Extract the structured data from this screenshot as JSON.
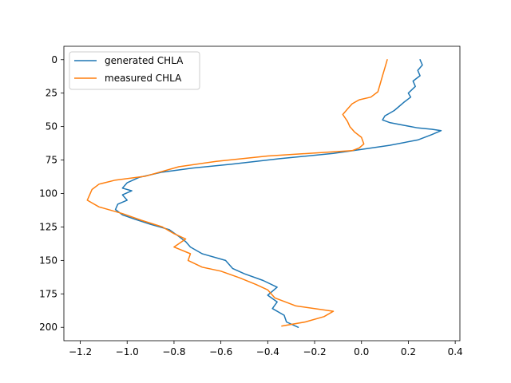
{
  "chart_data": {
    "type": "line",
    "title": "",
    "xlabel": "",
    "ylabel": "",
    "xlim": [
      -1.27,
      0.42
    ],
    "ylim": [
      210,
      -10
    ],
    "y_inverted": true,
    "grid": false,
    "legend_position": "upper-left",
    "x_ticks": [
      -1.2,
      -1.0,
      -0.8,
      -0.6,
      -0.4,
      -0.2,
      0.0,
      0.2,
      0.4
    ],
    "x_tick_labels": [
      "−1.2",
      "−1.0",
      "−0.8",
      "−0.6",
      "−0.4",
      "−0.2",
      "0.0",
      "0.2",
      "0.4"
    ],
    "y_ticks": [
      0,
      25,
      50,
      75,
      100,
      125,
      150,
      175,
      200
    ],
    "y_tick_labels": [
      "0",
      "25",
      "50",
      "75",
      "100",
      "125",
      "150",
      "175",
      "200"
    ],
    "series": [
      {
        "name": "generated CHLA",
        "color": "#1f77b4",
        "points": [
          [
            0.25,
            0
          ],
          [
            0.26,
            4
          ],
          [
            0.24,
            8
          ],
          [
            0.25,
            12
          ],
          [
            0.22,
            16
          ],
          [
            0.23,
            20
          ],
          [
            0.2,
            25
          ],
          [
            0.21,
            28
          ],
          [
            0.18,
            32
          ],
          [
            0.16,
            35
          ],
          [
            0.14,
            38
          ],
          [
            0.12,
            40
          ],
          [
            0.1,
            42
          ],
          [
            0.09,
            45
          ],
          [
            0.12,
            47
          ],
          [
            0.18,
            49
          ],
          [
            0.24,
            51
          ],
          [
            0.3,
            52
          ],
          [
            0.34,
            53
          ],
          [
            0.3,
            56
          ],
          [
            0.24,
            60
          ],
          [
            0.12,
            64
          ],
          [
            0.0,
            67
          ],
          [
            -0.12,
            70
          ],
          [
            -0.35,
            74
          ],
          [
            -0.55,
            78
          ],
          [
            -0.72,
            81
          ],
          [
            -0.85,
            84
          ],
          [
            -0.95,
            88
          ],
          [
            -1.0,
            92
          ],
          [
            -1.02,
            96
          ],
          [
            -0.98,
            98
          ],
          [
            -1.02,
            101
          ],
          [
            -1.0,
            105
          ],
          [
            -1.04,
            108
          ],
          [
            -1.05,
            112
          ],
          [
            -1.02,
            116
          ],
          [
            -0.97,
            119
          ],
          [
            -0.9,
            123
          ],
          [
            -0.82,
            127
          ],
          [
            -0.78,
            132
          ],
          [
            -0.75,
            136
          ],
          [
            -0.73,
            140
          ],
          [
            -0.68,
            145
          ],
          [
            -0.58,
            150
          ],
          [
            -0.55,
            156
          ],
          [
            -0.5,
            160
          ],
          [
            -0.42,
            165
          ],
          [
            -0.36,
            170
          ],
          [
            -0.4,
            176
          ],
          [
            -0.36,
            181
          ],
          [
            -0.38,
            186
          ],
          [
            -0.33,
            191
          ],
          [
            -0.32,
            196
          ],
          [
            -0.27,
            200
          ]
        ]
      },
      {
        "name": "measured CHLA",
        "color": "#ff7f0e",
        "points": [
          [
            0.11,
            0
          ],
          [
            0.1,
            6
          ],
          [
            0.09,
            12
          ],
          [
            0.08,
            18
          ],
          [
            0.07,
            24
          ],
          [
            0.04,
            28
          ],
          [
            -0.01,
            30
          ],
          [
            -0.04,
            33
          ],
          [
            -0.06,
            37
          ],
          [
            -0.08,
            41
          ],
          [
            -0.06,
            46
          ],
          [
            -0.05,
            50
          ],
          [
            -0.03,
            54
          ],
          [
            0.0,
            58
          ],
          [
            0.01,
            63
          ],
          [
            -0.01,
            66
          ],
          [
            -0.04,
            68
          ],
          [
            -0.4,
            72
          ],
          [
            -0.62,
            76
          ],
          [
            -0.78,
            80
          ],
          [
            -0.92,
            87
          ],
          [
            -1.05,
            90
          ],
          [
            -1.12,
            93
          ],
          [
            -1.15,
            97
          ],
          [
            -1.16,
            101
          ],
          [
            -1.17,
            105
          ],
          [
            -1.12,
            110
          ],
          [
            -1.02,
            115
          ],
          [
            -0.94,
            120
          ],
          [
            -0.85,
            125
          ],
          [
            -0.8,
            130
          ],
          [
            -0.75,
            134
          ],
          [
            -0.8,
            140
          ],
          [
            -0.73,
            145
          ],
          [
            -0.74,
            150
          ],
          [
            -0.68,
            155
          ],
          [
            -0.6,
            158
          ],
          [
            -0.52,
            163
          ],
          [
            -0.45,
            168
          ],
          [
            -0.4,
            172
          ],
          [
            -0.37,
            178
          ],
          [
            -0.28,
            184
          ],
          [
            -0.12,
            188
          ],
          [
            -0.16,
            192
          ],
          [
            -0.24,
            196
          ],
          [
            -0.34,
            199
          ]
        ]
      }
    ]
  }
}
